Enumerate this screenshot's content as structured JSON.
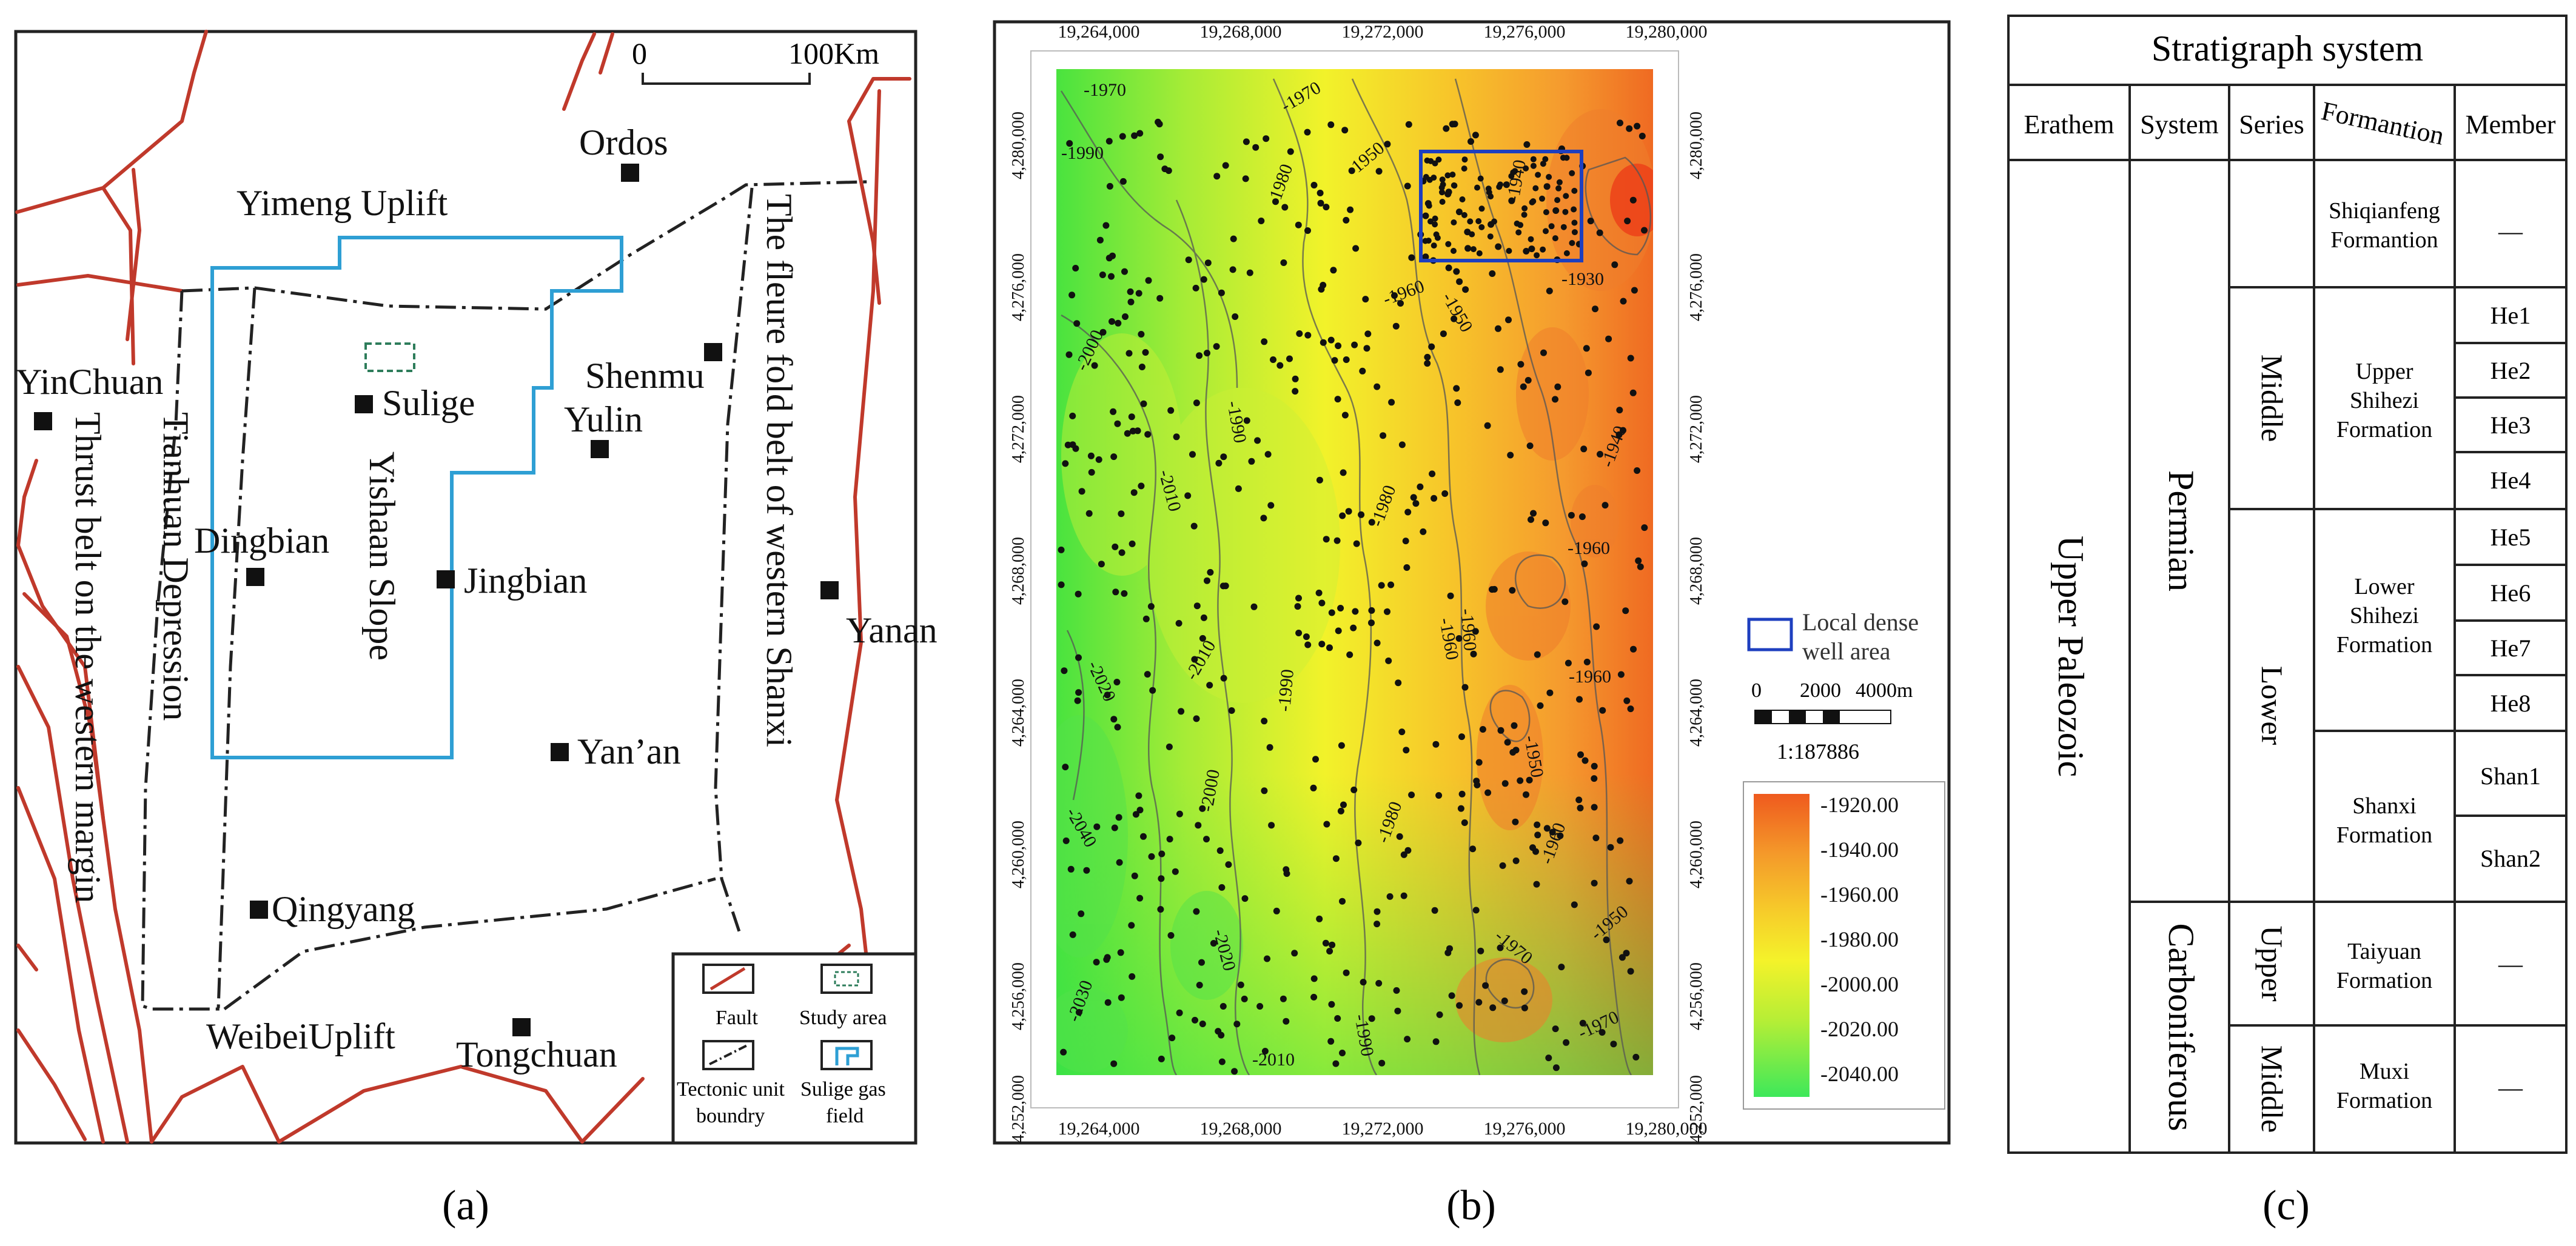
{
  "panel_labels": {
    "a": "(a)",
    "b": "(b)",
    "c": "(c)"
  },
  "map_a": {
    "scale_zero": "0",
    "scale_end": "100Km",
    "cities": {
      "ordos": "Ordos",
      "yinchuan": "YinChuan",
      "sulige": "Sulige",
      "shenmu": "Shenmu",
      "yulin": "Yulin",
      "dingbian": "Dingbian",
      "jingbian": "Jingbian",
      "yanan": "Yanan",
      "yan_an": "Yan’an",
      "qingyang": "Qingyang",
      "tongchuan": "Tongchuan"
    },
    "units": {
      "yimeng": "Yimeng Uplift",
      "weibei": "WeibeiUplift",
      "yishaan": "Yishaan Slope",
      "tianhuan": "Tianhuan Depression",
      "thrust": "Thrust belt on the western margin",
      "flexure": "The fleure fold belt of western Shanxi"
    },
    "legend": {
      "fault": "Fault",
      "study_area": "Study area",
      "tectonic_1": "Tectonic unit",
      "tectonic_2": "boundry",
      "sulige_1": "Sulige gas",
      "sulige_2": "field"
    },
    "colors": {
      "fault": "#c0392b",
      "gas_field": "#2e9fd4",
      "study_area": "#2e7d5b"
    }
  },
  "map_b": {
    "x_ticks": [
      "19,264,000",
      "19,268,000",
      "19,272,000",
      "19,276,000",
      "19,280,000"
    ],
    "y_ticks": [
      "4,280,000",
      "4,276,000",
      "4,272,000",
      "4,268,000",
      "4,264,000",
      "4,260,000",
      "4,256,000",
      "4,252,000"
    ],
    "contour_labels": [
      "-1970",
      "-1990",
      "-1980",
      "-1970",
      "-1950",
      "-1940",
      "-1930",
      "-1960",
      "-1950",
      "-2000",
      "-1990",
      "-2010",
      "-1980",
      "-1960",
      "-1940",
      "-1960",
      "-2010",
      "-1990",
      "-1960",
      "-1960",
      "-2020",
      "-2000",
      "-1950",
      "-1980",
      "-1960",
      "-2040",
      "-2020",
      "-1970",
      "-1950",
      "-2030",
      "-1990",
      "-1970",
      "-2010"
    ],
    "legend_dense": {
      "line1": "Local dense",
      "line2": "well area"
    },
    "scale_bar": {
      "l0": "0",
      "l1": "2000",
      "l2": "4000m",
      "ratio": "1:187886"
    },
    "colorbar": [
      "-1920.00",
      "-1940.00",
      "-1960.00",
      "-1980.00",
      "-2000.00",
      "-2020.00",
      "-2040.00"
    ],
    "colors": {
      "dense_box": "#1e3fbf",
      "high": "#ee5a1a",
      "low": "#2ee85a"
    }
  },
  "strat_table": {
    "title": "Stratigraph system",
    "headers": [
      "Erathem",
      "System",
      "Series",
      "Formantion",
      "Member"
    ],
    "erathem": "Upper Paleozoic",
    "systems": [
      "Permian",
      "Carboniferous"
    ],
    "series": [
      "Middle",
      "Lower",
      "Upper",
      "Middle"
    ],
    "formations": [
      {
        "line1": "Shiqianfeng",
        "line2": "Formantion"
      },
      {
        "line1": "Upper",
        "line2": "Shihezi",
        "line3": "Formation"
      },
      {
        "line1": "Lower",
        "line2": "Shihezi",
        "line3": "Formation"
      },
      {
        "line1": "Shanxi",
        "line2": "Formation"
      },
      {
        "line1": "Taiyuan",
        "line2": "Formation"
      },
      {
        "line1": "Muxi",
        "line2": "Formation"
      }
    ],
    "members": [
      "He1",
      "He2",
      "He3",
      "He4",
      "He5",
      "He6",
      "He7",
      "He8",
      "Shan1",
      "Shan2"
    ],
    "dash": "—"
  }
}
